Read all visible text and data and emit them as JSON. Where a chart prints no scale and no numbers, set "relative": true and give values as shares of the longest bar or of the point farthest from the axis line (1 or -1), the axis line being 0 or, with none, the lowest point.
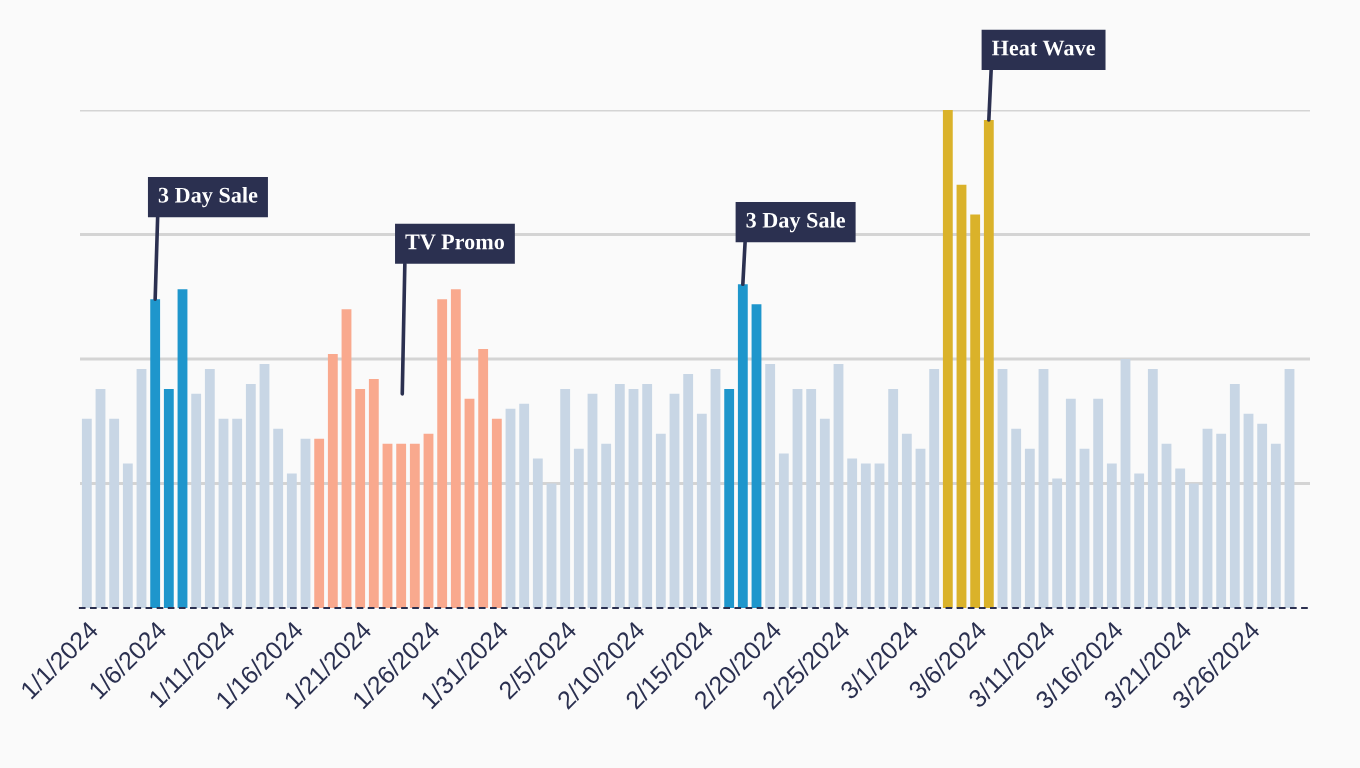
{
  "chart_data": {
    "type": "bar",
    "relative": true,
    "grid": "y",
    "x": [
      "2024-01-01",
      "2024-01-02",
      "2024-01-03",
      "2024-01-04",
      "2024-01-05",
      "2024-01-06",
      "2024-01-07",
      "2024-01-08",
      "2024-01-09",
      "2024-01-10",
      "2024-01-11",
      "2024-01-12",
      "2024-01-13",
      "2024-01-14",
      "2024-01-15",
      "2024-01-16",
      "2024-01-17",
      "2024-01-18",
      "2024-01-19",
      "2024-01-20",
      "2024-01-21",
      "2024-01-22",
      "2024-01-23",
      "2024-01-24",
      "2024-01-25",
      "2024-01-26",
      "2024-01-27",
      "2024-01-28",
      "2024-01-29",
      "2024-01-30",
      "2024-01-31",
      "2024-02-01",
      "2024-02-02",
      "2024-02-03",
      "2024-02-04",
      "2024-02-05",
      "2024-02-06",
      "2024-02-07",
      "2024-02-08",
      "2024-02-09",
      "2024-02-10",
      "2024-02-11",
      "2024-02-12",
      "2024-02-13",
      "2024-02-14",
      "2024-02-15",
      "2024-02-16",
      "2024-02-17",
      "2024-02-18",
      "2024-02-19",
      "2024-02-20",
      "2024-02-21",
      "2024-02-22",
      "2024-02-23",
      "2024-02-24",
      "2024-02-25",
      "2024-02-26",
      "2024-02-27",
      "2024-02-28",
      "2024-02-29",
      "2024-03-01",
      "2024-03-02",
      "2024-03-03",
      "2024-03-04",
      "2024-03-05",
      "2024-03-06",
      "2024-03-07",
      "2024-03-08",
      "2024-03-09",
      "2024-03-10",
      "2024-03-11",
      "2024-03-12",
      "2024-03-13",
      "2024-03-14",
      "2024-03-15",
      "2024-03-16",
      "2024-03-17",
      "2024-03-18",
      "2024-03-19",
      "2024-03-20",
      "2024-03-21",
      "2024-03-22",
      "2024-03-23",
      "2024-03-24",
      "2024-03-25",
      "2024-03-26",
      "2024-03-27",
      "2024-03-28",
      "2024-03-29"
    ],
    "values": [
      0.38,
      0.44,
      0.38,
      0.29,
      0.48,
      0.62,
      0.44,
      0.64,
      0.43,
      0.48,
      0.38,
      0.38,
      0.45,
      0.49,
      0.36,
      0.27,
      0.34,
      0.34,
      0.51,
      0.6,
      0.44,
      0.46,
      0.33,
      0.33,
      0.33,
      0.35,
      0.62,
      0.64,
      0.42,
      0.52,
      0.38,
      0.4,
      0.41,
      0.3,
      0.25,
      0.44,
      0.32,
      0.43,
      0.33,
      0.45,
      0.44,
      0.45,
      0.35,
      0.43,
      0.47,
      0.39,
      0.48,
      0.44,
      0.65,
      0.61,
      0.49,
      0.31,
      0.44,
      0.44,
      0.38,
      0.49,
      0.3,
      0.29,
      0.29,
      0.44,
      0.35,
      0.32,
      0.48,
      1.0,
      0.85,
      0.79,
      0.98,
      0.48,
      0.36,
      0.32,
      0.48,
      0.26,
      0.42,
      0.32,
      0.42,
      0.29,
      0.5,
      0.27,
      0.48,
      0.33,
      0.28,
      0.25,
      0.36,
      0.35,
      0.45,
      0.39,
      0.37,
      0.33,
      0.48
    ],
    "colors": [
      "#c8d6e5",
      "#c8d6e5",
      "#c8d6e5",
      "#c8d6e5",
      "#c8d6e5",
      "#1e96cc",
      "#1e96cc",
      "#1e96cc",
      "#c8d6e5",
      "#c8d6e5",
      "#c8d6e5",
      "#c8d6e5",
      "#c8d6e5",
      "#c8d6e5",
      "#c8d6e5",
      "#c8d6e5",
      "#c8d6e5",
      "#f9a98e",
      "#f9a98e",
      "#f9a98e",
      "#f9a98e",
      "#f9a98e",
      "#f9a98e",
      "#f9a98e",
      "#f9a98e",
      "#f9a98e",
      "#f9a98e",
      "#f9a98e",
      "#f9a98e",
      "#f9a98e",
      "#f9a98e",
      "#c8d6e5",
      "#c8d6e5",
      "#c8d6e5",
      "#c8d6e5",
      "#c8d6e5",
      "#c8d6e5",
      "#c8d6e5",
      "#c8d6e5",
      "#c8d6e5",
      "#c8d6e5",
      "#c8d6e5",
      "#c8d6e5",
      "#c8d6e5",
      "#c8d6e5",
      "#c8d6e5",
      "#c8d6e5",
      "#1e96cc",
      "#1e96cc",
      "#1e96cc",
      "#c8d6e5",
      "#c8d6e5",
      "#c8d6e5",
      "#c8d6e5",
      "#c8d6e5",
      "#c8d6e5",
      "#c8d6e5",
      "#c8d6e5",
      "#c8d6e5",
      "#c8d6e5",
      "#c8d6e5",
      "#c8d6e5",
      "#c8d6e5",
      "#dab22a",
      "#dab22a",
      "#dab22a",
      "#dab22a",
      "#c8d6e5",
      "#c8d6e5",
      "#c8d6e5",
      "#c8d6e5",
      "#c8d6e5",
      "#c8d6e5",
      "#c8d6e5",
      "#c8d6e5",
      "#c8d6e5",
      "#c8d6e5",
      "#c8d6e5",
      "#c8d6e5",
      "#c8d6e5",
      "#c8d6e5",
      "#c8d6e5",
      "#c8d6e5",
      "#c8d6e5",
      "#c8d6e5",
      "#c8d6e5",
      "#c8d6e5",
      "#c8d6e5",
      "#c8d6e5"
    ],
    "xlim": [
      "2023-12-31T12:00",
      "2024-03-30T12:00"
    ],
    "xticks": [
      {
        "value": "2024-01-01",
        "label": "1/1/2024"
      },
      {
        "value": "2024-01-06",
        "label": "1/6/2024"
      },
      {
        "value": "2024-01-11",
        "label": "1/11/2024"
      },
      {
        "value": "2024-01-16",
        "label": "1/16/2024"
      },
      {
        "value": "2024-01-21",
        "label": "1/21/2024"
      },
      {
        "value": "2024-01-26",
        "label": "1/26/2024"
      },
      {
        "value": "2024-01-31",
        "label": "1/31/2024"
      },
      {
        "value": "2024-02-05",
        "label": "2/5/2024"
      },
      {
        "value": "2024-02-10",
        "label": "2/10/2024"
      },
      {
        "value": "2024-02-15",
        "label": "2/15/2024"
      },
      {
        "value": "2024-02-20",
        "label": "2/20/2024"
      },
      {
        "value": "2024-02-25",
        "label": "2/25/2024"
      },
      {
        "value": "2024-03-01",
        "label": "3/1/2024"
      },
      {
        "value": "2024-03-06",
        "label": "3/6/2024"
      },
      {
        "value": "2024-03-11",
        "label": "3/11/2024"
      },
      {
        "value": "2024-03-16",
        "label": "3/16/2024"
      },
      {
        "value": "2024-03-21",
        "label": "3/21/2024"
      },
      {
        "value": "2024-03-26",
        "label": "3/26/2024"
      }
    ],
    "annotations": [
      {
        "text": "3 Day Sale",
        "x": "2024-01-06",
        "y": 0.62
      },
      "TV Promo",
      {
        "text": "3 Day Sale",
        "x": "2024-02-18",
        "y": 0.65
      },
      {
        "text": "Heat Wave",
        "x": "2024-03-07",
        "y": 0.98
      }
    ]
  }
}
